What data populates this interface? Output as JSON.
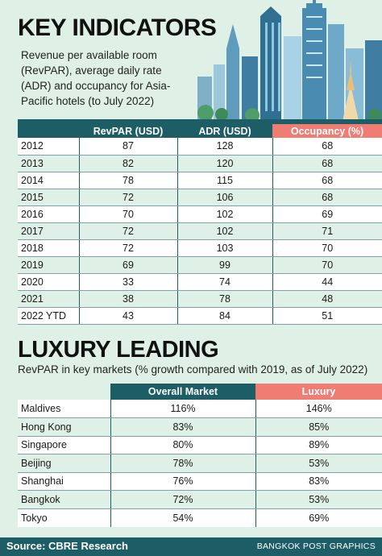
{
  "header": {
    "title": "KEY INDICATORS",
    "subtitle": "Revenue per available room (RevPAR), average daily rate (ADR) and occupancy for Asia-Pacific hotels (to July 2022)"
  },
  "table1": {
    "columns": [
      "RevPAR (USD)",
      "ADR (USD)",
      "Occupancy (%)"
    ],
    "rows": [
      {
        "year": "2012",
        "revpar": "87",
        "adr": "128",
        "occ": "68"
      },
      {
        "year": "2013",
        "revpar": "82",
        "adr": "120",
        "occ": "68"
      },
      {
        "year": "2014",
        "revpar": "78",
        "adr": "115",
        "occ": "68"
      },
      {
        "year": "2015",
        "revpar": "72",
        "adr": "106",
        "occ": "68"
      },
      {
        "year": "2016",
        "revpar": "70",
        "adr": "102",
        "occ": "69"
      },
      {
        "year": "2017",
        "revpar": "72",
        "adr": "102",
        "occ": "71"
      },
      {
        "year": "2018",
        "revpar": "72",
        "adr": "103",
        "occ": "70"
      },
      {
        "year": "2019",
        "revpar": "69",
        "adr": "99",
        "occ": "70"
      },
      {
        "year": "2020",
        "revpar": "33",
        "adr": "74",
        "occ": "44"
      },
      {
        "year": "2021",
        "revpar": "38",
        "adr": "78",
        "occ": "48"
      },
      {
        "year": "2022 YTD",
        "revpar": "43",
        "adr": "84",
        "occ": "51"
      }
    ]
  },
  "section2": {
    "title": "LUXURY LEADING",
    "subtitle": "RevPAR in key markets (% growth compared with 2019, as of July 2022)"
  },
  "table2": {
    "columns": [
      "Overall Market",
      "Luxury"
    ],
    "rows": [
      {
        "market": "Maldives",
        "overall": "116%",
        "luxury": "146%"
      },
      {
        "market": "Hong Kong",
        "overall": "83%",
        "luxury": "85%"
      },
      {
        "market": "Singapore",
        "overall": "80%",
        "luxury": "89%"
      },
      {
        "market": "Beijing",
        "overall": "78%",
        "luxury": "53%"
      },
      {
        "market": "Shanghai",
        "overall": "76%",
        "luxury": "83%"
      },
      {
        "market": "Bangkok",
        "overall": "72%",
        "luxury": "53%"
      },
      {
        "market": "Tokyo",
        "overall": "54%",
        "luxury": "69%"
      }
    ]
  },
  "footer": {
    "source": "Source: CBRE Research",
    "credit": "BANGKOK POST GRAPHICS"
  },
  "colors": {
    "background": "#dff0e6",
    "teal": "#1d5d66",
    "coral": "#ef7d73"
  }
}
